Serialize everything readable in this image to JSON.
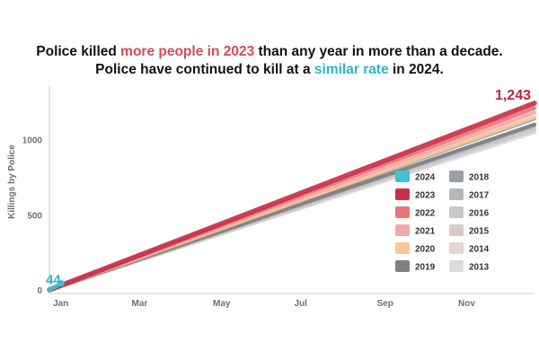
{
  "title": {
    "line1_pre": "Police killed ",
    "line1_hl": "more people in 2023",
    "line1_post": " than any year in more than a decade.",
    "line2_pre": "Police have continued to kill at a ",
    "line2_hl": "similar rate",
    "line2_post": " in 2024."
  },
  "colors": {
    "highlight_red": "#d9485a",
    "highlight_teal": "#2ab5c8"
  },
  "chart_data": {
    "type": "line",
    "title": "Police killed more people in 2023 than any year in more than a decade. Police have continued to kill at a similar rate in 2024.",
    "xlabel": "",
    "ylabel": "Killings by Police",
    "x_unit": "day of year",
    "xlim": [
      1,
      365
    ],
    "ylim": [
      0,
      1320
    ],
    "x_ticks": [
      {
        "label": "Jan",
        "day": 1
      },
      {
        "label": "Mar",
        "day": 60
      },
      {
        "label": "May",
        "day": 121
      },
      {
        "label": "Jul",
        "day": 182
      },
      {
        "label": "Sep",
        "day": 244
      },
      {
        "label": "Nov",
        "day": 305
      }
    ],
    "y_ticks": [
      0,
      500,
      1000
    ],
    "grid": false,
    "legend_position": "bottom-right",
    "series": [
      {
        "name": "2013",
        "color": "#dcdcdc",
        "x": [
          1,
          365
        ],
        "y": [
          0,
          1060
        ]
      },
      {
        "name": "2014",
        "color": "#e3d6d6",
        "x": [
          1,
          365
        ],
        "y": [
          0,
          1050
        ]
      },
      {
        "name": "2015",
        "color": "#dcc9c9",
        "x": [
          1,
          365
        ],
        "y": [
          0,
          1100
        ]
      },
      {
        "name": "2016",
        "color": "#c8c8c8",
        "x": [
          1,
          365
        ],
        "y": [
          0,
          1070
        ]
      },
      {
        "name": "2017",
        "color": "#b4b6bb",
        "x": [
          1,
          365
        ],
        "y": [
          0,
          1090
        ]
      },
      {
        "name": "2018",
        "color": "#9a9ea6",
        "x": [
          1,
          365
        ],
        "y": [
          0,
          1140
        ]
      },
      {
        "name": "2019",
        "color": "#7f7f80",
        "x": [
          1,
          365
        ],
        "y": [
          0,
          1100
        ]
      },
      {
        "name": "2020",
        "color": "#f9c79a",
        "x": [
          1,
          365
        ],
        "y": [
          0,
          1150
        ]
      },
      {
        "name": "2021",
        "color": "#f3a8a8",
        "x": [
          1,
          365
        ],
        "y": [
          0,
          1180
        ]
      },
      {
        "name": "2022",
        "color": "#e8757a",
        "x": [
          1,
          365
        ],
        "y": [
          0,
          1210
        ]
      },
      {
        "name": "2023",
        "color": "#c8304a",
        "x": [
          1,
          365
        ],
        "y": [
          0,
          1243
        ]
      },
      {
        "name": "2024",
        "color": "#3cc3d4",
        "x": [
          1,
          10
        ],
        "y": [
          0,
          44
        ]
      }
    ],
    "annotations": [
      {
        "text": "1,243",
        "series": "2023"
      },
      {
        "text": "44",
        "series": "2024"
      }
    ],
    "legend": [
      {
        "name": "2024",
        "color": "#3cc3d4"
      },
      {
        "name": "2023",
        "color": "#c8304a"
      },
      {
        "name": "2022",
        "color": "#e8757a"
      },
      {
        "name": "2021",
        "color": "#f3a8a8"
      },
      {
        "name": "2020",
        "color": "#f9c79a"
      },
      {
        "name": "2019",
        "color": "#7f7f80"
      },
      {
        "name": "2018",
        "color": "#9a9ea6"
      },
      {
        "name": "2017",
        "color": "#b4b6bb"
      },
      {
        "name": "2016",
        "color": "#c8c8c8"
      },
      {
        "name": "2015",
        "color": "#dcc9c9"
      },
      {
        "name": "2014",
        "color": "#e3d6d6"
      },
      {
        "name": "2013",
        "color": "#dcdcdc"
      }
    ]
  }
}
